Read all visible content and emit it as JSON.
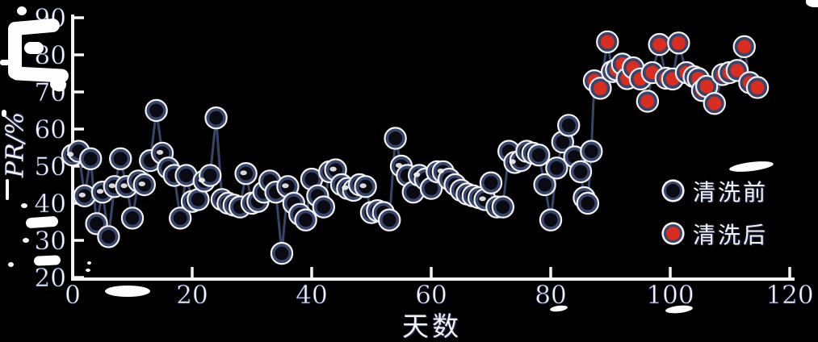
{
  "chart_data": {
    "type": "scatter",
    "title": "",
    "xlabel": "天数",
    "ylabel": "PR/%",
    "xlim": [
      0,
      120
    ],
    "ylim": [
      20,
      90
    ],
    "xticks": [
      0,
      20,
      40,
      60,
      80,
      100,
      120
    ],
    "yticks": [
      20,
      30,
      40,
      50,
      60,
      70,
      80,
      90
    ],
    "grid": false,
    "legend_position": "right-middle",
    "connected": true,
    "series": [
      {
        "name": "清洗前",
        "marker": "open-circle",
        "marker_fill": "#0a0a12",
        "points": [
          [
            0,
            53
          ],
          [
            1,
            54
          ],
          [
            2,
            42
          ],
          [
            3,
            52
          ],
          [
            4,
            34.5
          ],
          [
            5,
            43
          ],
          [
            6,
            31
          ],
          [
            7,
            44.5
          ],
          [
            8,
            52
          ],
          [
            9,
            44.5
          ],
          [
            10,
            36
          ],
          [
            11,
            46
          ],
          [
            12,
            45
          ],
          [
            13,
            51.5
          ],
          [
            14,
            65
          ],
          [
            15,
            53.5
          ],
          [
            16,
            49.5
          ],
          [
            17,
            47.5
          ],
          [
            18,
            36
          ],
          [
            19,
            47.5
          ],
          [
            20,
            40.5
          ],
          [
            21,
            41
          ],
          [
            22,
            46
          ],
          [
            23,
            47.5
          ],
          [
            24,
            63
          ],
          [
            25,
            41
          ],
          [
            26,
            40
          ],
          [
            27,
            39.5
          ],
          [
            28,
            39
          ],
          [
            29,
            48
          ],
          [
            30,
            40
          ],
          [
            31,
            40.5
          ],
          [
            32,
            43
          ],
          [
            33,
            46
          ],
          [
            34,
            43
          ],
          [
            35,
            26.5
          ],
          [
            36,
            44.5
          ],
          [
            37,
            40
          ],
          [
            38,
            37
          ],
          [
            39,
            35.5
          ],
          [
            40,
            46.5
          ],
          [
            41,
            42
          ],
          [
            42,
            39
          ],
          [
            43,
            48.5
          ],
          [
            44,
            49
          ],
          [
            45,
            45
          ],
          [
            46,
            44
          ],
          [
            47,
            43.5
          ],
          [
            48,
            45
          ],
          [
            49,
            44.5
          ],
          [
            50,
            37.5
          ],
          [
            51,
            38
          ],
          [
            52,
            37.5
          ],
          [
            53,
            35.5
          ],
          [
            54,
            57.5
          ],
          [
            55,
            50
          ],
          [
            56,
            47.5
          ],
          [
            57,
            43
          ],
          [
            58,
            47.5
          ],
          [
            59,
            46.5
          ],
          [
            60,
            44
          ],
          [
            61,
            48.5
          ],
          [
            62,
            48.5
          ],
          [
            63,
            46.5
          ],
          [
            64,
            45
          ],
          [
            65,
            43.5
          ],
          [
            66,
            42.5
          ],
          [
            67,
            42
          ],
          [
            68,
            41.5
          ],
          [
            69,
            41
          ],
          [
            70,
            45.5
          ],
          [
            71,
            39
          ],
          [
            72,
            39
          ],
          [
            73,
            54
          ],
          [
            74,
            51
          ],
          [
            75,
            51.5
          ],
          [
            76,
            54
          ],
          [
            77,
            53.5
          ],
          [
            78,
            53
          ],
          [
            79,
            45
          ],
          [
            80,
            35.5
          ],
          [
            81,
            49.5
          ],
          [
            82,
            56.5
          ],
          [
            83,
            61
          ],
          [
            84,
            52.5
          ],
          [
            85,
            48.5
          ],
          [
            85.6,
            41.5
          ],
          [
            86.2,
            40
          ],
          [
            86.8,
            54
          ]
        ]
      },
      {
        "name": "清洗后",
        "marker": "filled-circle",
        "marker_fill": "#da2c1f",
        "points": [
          [
            87.3,
            73
          ],
          [
            88.3,
            71
          ],
          [
            89.5,
            83.5
          ],
          [
            90.3,
            75.5
          ],
          [
            91,
            76
          ],
          [
            92,
            77.5
          ],
          [
            92.8,
            73.6
          ],
          [
            93.8,
            76.5
          ],
          [
            95,
            73.5
          ],
          [
            96.2,
            67.5
          ],
          [
            97,
            75.2
          ],
          [
            98.2,
            82.8
          ],
          [
            99.3,
            73.7
          ],
          [
            100.4,
            73.5
          ],
          [
            101.4,
            83.2
          ],
          [
            102.7,
            75.2
          ],
          [
            104,
            74.1
          ],
          [
            104.7,
            73.6
          ],
          [
            105.4,
            70.4
          ],
          [
            106.1,
            71.5
          ],
          [
            107.4,
            66.9
          ],
          [
            108.8,
            74.7
          ],
          [
            109.9,
            75.2
          ],
          [
            111.2,
            75.8
          ],
          [
            112.4,
            82.2
          ],
          [
            113.3,
            72.5
          ],
          [
            114.6,
            71.2
          ]
        ]
      }
    ]
  },
  "colors": {
    "background": "#000000",
    "axis": "#f5f5f5",
    "text": "#f4f4f4",
    "text_fringe": "#2c3763",
    "line": "#38456b",
    "marker_ring": "#38456b",
    "marker_halo": "#f2f2f2",
    "before_fill": "#0a0a12",
    "after_fill": "#da2c1f"
  }
}
